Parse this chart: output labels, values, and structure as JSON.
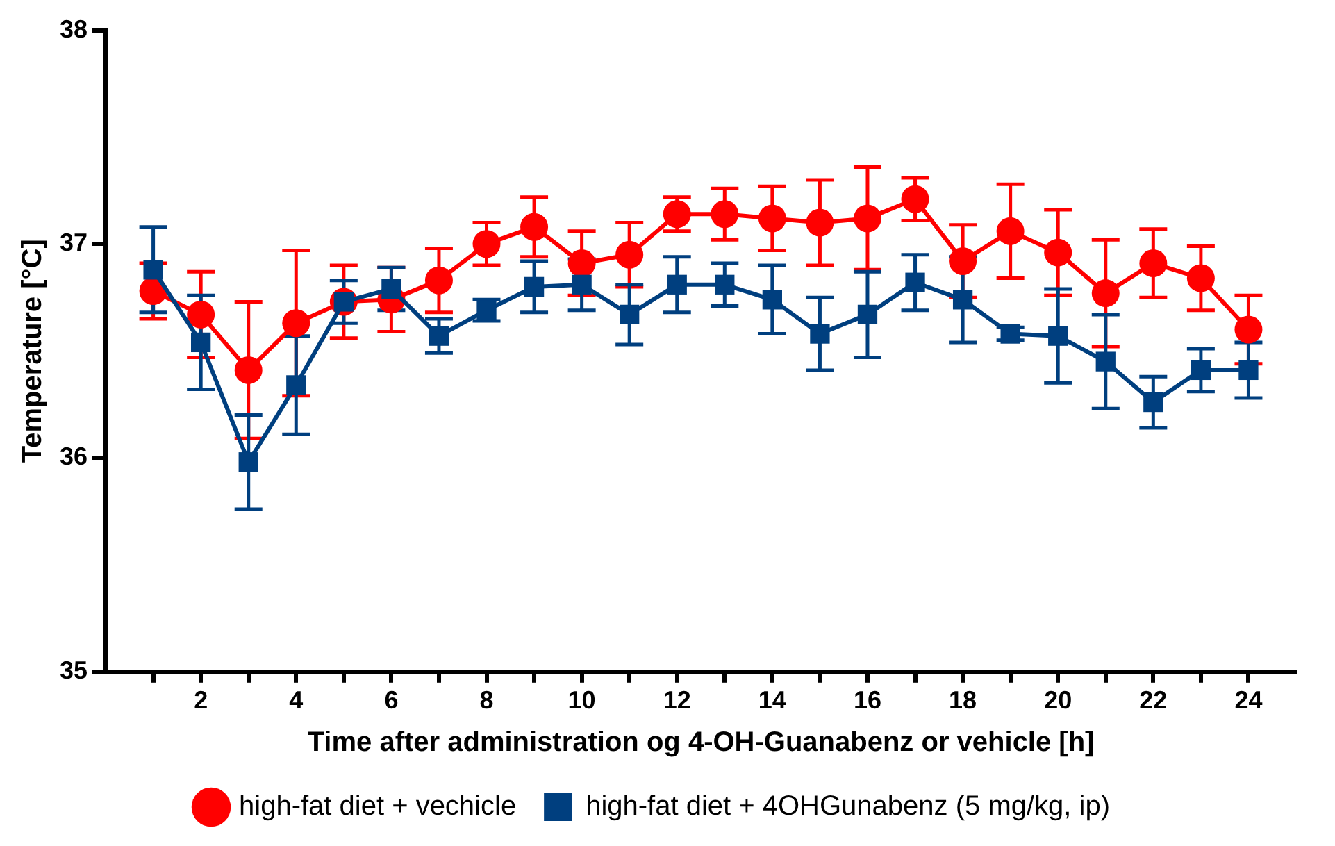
{
  "chart_data": {
    "type": "line",
    "xlabel": "Time after administration og 4-OH-Guanabenz or vehicle [h]",
    "ylabel": "Temperature [°C]",
    "x": [
      1,
      2,
      3,
      4,
      5,
      6,
      7,
      8,
      9,
      10,
      11,
      12,
      13,
      14,
      15,
      16,
      17,
      18,
      19,
      20,
      21,
      22,
      23,
      24
    ],
    "xlim": [
      0,
      25
    ],
    "xticks": [
      {
        "value": 1,
        "label": null
      },
      2,
      {
        "value": 3,
        "label": null
      },
      4,
      {
        "value": 5,
        "label": null
      },
      6,
      {
        "value": 7,
        "label": null
      },
      8,
      {
        "value": 9,
        "label": null
      },
      10,
      {
        "value": 11,
        "label": null
      },
      12,
      {
        "value": 13,
        "label": null
      },
      14,
      {
        "value": 15,
        "label": null
      },
      16,
      {
        "value": 17,
        "label": null
      },
      18,
      {
        "value": 19,
        "label": null
      },
      20,
      {
        "value": 21,
        "label": null
      },
      22,
      {
        "value": 23,
        "label": null
      },
      24
    ],
    "ylim": [
      35,
      38
    ],
    "yticks": [
      35,
      36,
      37,
      38
    ],
    "grid": false,
    "legend": "bottom",
    "line_style": "solid",
    "series": [
      {
        "name": "high-fat diet + vechicle",
        "color": "#ff0000",
        "marker": "circle",
        "values": [
          36.78,
          36.67,
          36.41,
          36.63,
          36.73,
          36.74,
          36.83,
          37.0,
          37.08,
          36.91,
          36.95,
          37.14,
          37.14,
          37.12,
          37.1,
          37.12,
          37.21,
          36.92,
          37.06,
          36.96,
          36.77,
          36.91,
          36.84,
          36.6
        ],
        "errors": [
          0.13,
          0.2,
          0.32,
          0.34,
          0.17,
          0.15,
          0.15,
          0.1,
          0.14,
          0.15,
          0.15,
          0.08,
          0.12,
          0.15,
          0.2,
          0.24,
          0.1,
          0.17,
          0.22,
          0.2,
          0.25,
          0.16,
          0.15,
          0.16
        ]
      },
      {
        "name": "high-fat diet + 4OHGunabenz (5 mg/kg, ip)",
        "color": "#003f7f",
        "marker": "square",
        "values": [
          36.88,
          36.54,
          35.98,
          36.34,
          36.73,
          36.79,
          36.57,
          36.69,
          36.8,
          36.81,
          36.67,
          36.81,
          36.81,
          36.74,
          36.58,
          36.67,
          36.82,
          36.74,
          36.58,
          36.57,
          36.45,
          36.26,
          36.41,
          36.41
        ],
        "errors": [
          0.2,
          0.22,
          0.22,
          0.23,
          0.1,
          0.1,
          0.08,
          0.05,
          0.12,
          0.12,
          0.14,
          0.13,
          0.1,
          0.16,
          0.17,
          0.2,
          0.13,
          0.2,
          0.03,
          0.22,
          0.22,
          0.12,
          0.1,
          0.13
        ]
      }
    ]
  }
}
